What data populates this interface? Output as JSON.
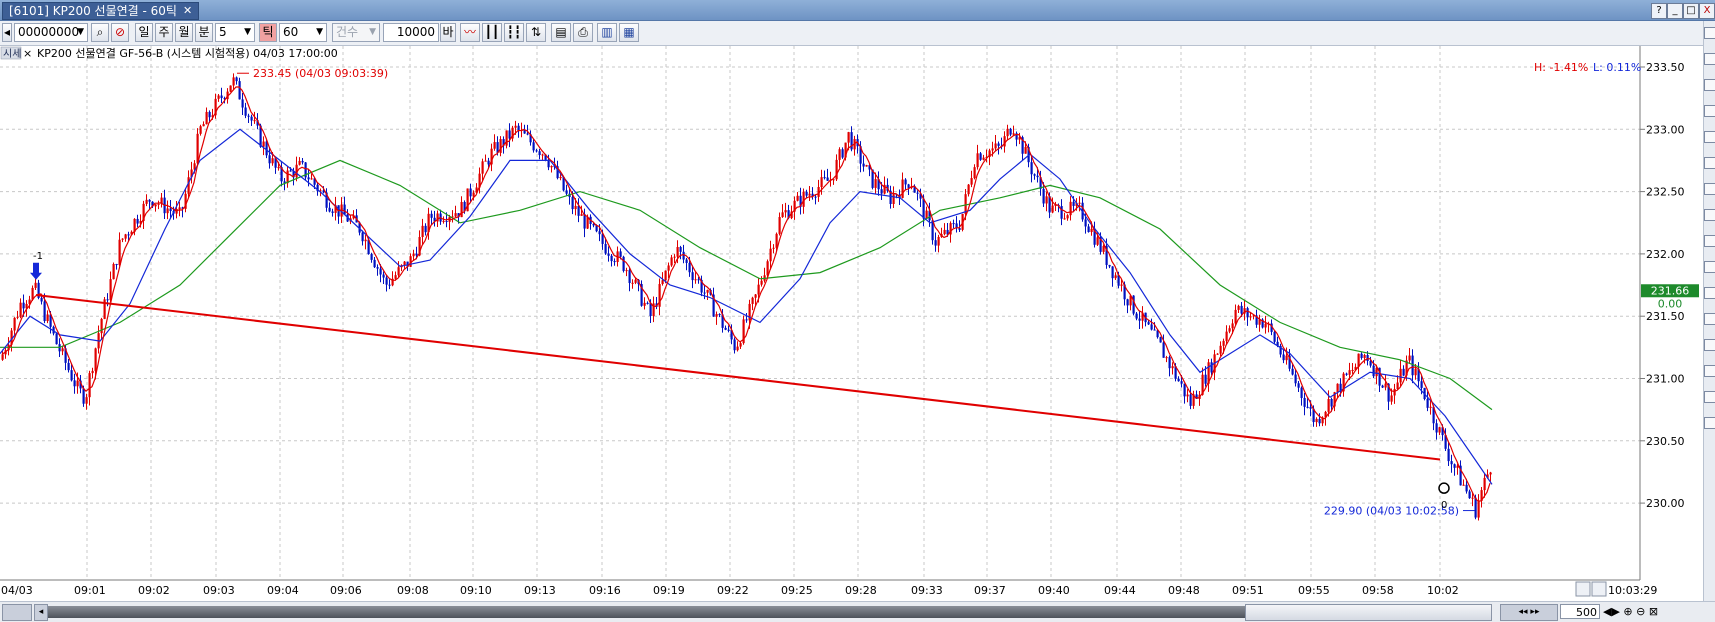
{
  "window": {
    "tab_title": "[6101] KP200 선물연결 - 60틱",
    "close_glyph": "✕",
    "help_button": "?",
    "min_button": "_",
    "restore_button": "□",
    "close_button": "X"
  },
  "toolbar": {
    "code_value": "00000000",
    "period_day": "일",
    "period_week": "주",
    "period_month": "월",
    "period_minute": "분",
    "minute_value": "5",
    "period_tick": "틱",
    "tick_value": "60",
    "count_label": "건수",
    "count_value": "10000",
    "count_unit": "바"
  },
  "legend": {
    "badge": "시세",
    "close_glyph": "×",
    "text": "KP200 선물연결  GF-56-B (시스템 시험적용) 04/03 17:00:00"
  },
  "stats": {
    "high": "H: -1.41%",
    "low": "L: 0.11%"
  },
  "current_price": "231.66",
  "current_change": "0.00",
  "footer": {
    "bar_count": "500",
    "clock": "10:03:29"
  },
  "chart_data": {
    "type": "candlestick",
    "ylim": [
      229.8,
      233.65
    ],
    "y_ticks": [
      "233.50",
      "233.00",
      "232.50",
      "232.00",
      "231.50",
      "231.00",
      "230.50",
      "230.00"
    ],
    "x_ticks": [
      "04/03",
      "09:01",
      "09:02",
      "09:03",
      "09:04",
      "09:06",
      "09:08",
      "09:10",
      "09:13",
      "09:16",
      "09:19",
      "09:22",
      "09:25",
      "09:28",
      "09:33",
      "09:37",
      "09:40",
      "09:44",
      "09:48",
      "09:51",
      "09:55",
      "09:58",
      "10:02"
    ],
    "price_path": [
      [
        0,
        231.15
      ],
      [
        20,
        231.6
      ],
      [
        34,
        231.72
      ],
      [
        55,
        231.3
      ],
      [
        78,
        230.9
      ],
      [
        85,
        230.85
      ],
      [
        100,
        231.45
      ],
      [
        120,
        232.1
      ],
      [
        150,
        232.45
      ],
      [
        180,
        232.3
      ],
      [
        200,
        233.0
      ],
      [
        232,
        233.4
      ],
      [
        258,
        232.95
      ],
      [
        280,
        232.6
      ],
      [
        300,
        232.7
      ],
      [
        330,
        232.4
      ],
      [
        360,
        232.2
      ],
      [
        385,
        231.75
      ],
      [
        410,
        231.95
      ],
      [
        430,
        232.3
      ],
      [
        460,
        232.35
      ],
      [
        490,
        232.8
      ],
      [
        515,
        233.0
      ],
      [
        545,
        232.8
      ],
      [
        570,
        232.4
      ],
      [
        600,
        232.1
      ],
      [
        625,
        231.9
      ],
      [
        650,
        231.5
      ],
      [
        675,
        232.05
      ],
      [
        700,
        231.75
      ],
      [
        735,
        231.25
      ],
      [
        755,
        231.65
      ],
      [
        780,
        232.3
      ],
      [
        810,
        232.5
      ],
      [
        830,
        232.6
      ],
      [
        848,
        232.95
      ],
      [
        870,
        232.6
      ],
      [
        890,
        232.45
      ],
      [
        910,
        232.6
      ],
      [
        935,
        232.1
      ],
      [
        960,
        232.25
      ],
      [
        975,
        232.8
      ],
      [
        1000,
        232.85
      ],
      [
        1012,
        233.05
      ],
      [
        1030,
        232.7
      ],
      [
        1050,
        232.35
      ],
      [
        1080,
        232.35
      ],
      [
        1100,
        232.05
      ],
      [
        1130,
        231.6
      ],
      [
        1160,
        231.25
      ],
      [
        1190,
        230.8
      ],
      [
        1210,
        231.1
      ],
      [
        1235,
        231.55
      ],
      [
        1265,
        231.45
      ],
      [
        1290,
        231.05
      ],
      [
        1315,
        230.65
      ],
      [
        1340,
        230.95
      ],
      [
        1365,
        231.2
      ],
      [
        1390,
        230.85
      ],
      [
        1408,
        231.15
      ],
      [
        1425,
        230.85
      ],
      [
        1450,
        230.35
      ],
      [
        1475,
        229.95
      ],
      [
        1492,
        230.35
      ]
    ],
    "ma_blue": [
      [
        0,
        231.2
      ],
      [
        30,
        231.5
      ],
      [
        60,
        231.35
      ],
      [
        100,
        231.3
      ],
      [
        130,
        231.6
      ],
      [
        165,
        232.2
      ],
      [
        200,
        232.75
      ],
      [
        240,
        233.0
      ],
      [
        280,
        232.75
      ],
      [
        320,
        232.5
      ],
      [
        360,
        232.2
      ],
      [
        400,
        231.9
      ],
      [
        430,
        231.95
      ],
      [
        470,
        232.3
      ],
      [
        510,
        232.75
      ],
      [
        550,
        232.75
      ],
      [
        590,
        232.35
      ],
      [
        630,
        232.0
      ],
      [
        670,
        231.75
      ],
      [
        710,
        231.65
      ],
      [
        760,
        231.45
      ],
      [
        800,
        231.8
      ],
      [
        830,
        232.25
      ],
      [
        860,
        232.5
      ],
      [
        900,
        232.45
      ],
      [
        930,
        232.25
      ],
      [
        970,
        232.35
      ],
      [
        1000,
        232.6
      ],
      [
        1030,
        232.8
      ],
      [
        1060,
        232.6
      ],
      [
        1090,
        232.25
      ],
      [
        1130,
        231.85
      ],
      [
        1170,
        231.35
      ],
      [
        1200,
        231.05
      ],
      [
        1230,
        231.2
      ],
      [
        1260,
        231.35
      ],
      [
        1290,
        231.2
      ],
      [
        1330,
        230.85
      ],
      [
        1370,
        231.05
      ],
      [
        1410,
        231.0
      ],
      [
        1445,
        230.7
      ],
      [
        1475,
        230.35
      ],
      [
        1492,
        230.15
      ]
    ],
    "ma_green": [
      [
        0,
        231.25
      ],
      [
        60,
        231.25
      ],
      [
        120,
        231.45
      ],
      [
        180,
        231.75
      ],
      [
        230,
        232.15
      ],
      [
        280,
        232.55
      ],
      [
        340,
        232.75
      ],
      [
        400,
        232.55
      ],
      [
        460,
        232.25
      ],
      [
        520,
        232.35
      ],
      [
        580,
        232.5
      ],
      [
        640,
        232.35
      ],
      [
        700,
        232.05
      ],
      [
        760,
        231.8
      ],
      [
        820,
        231.85
      ],
      [
        880,
        232.05
      ],
      [
        940,
        232.35
      ],
      [
        1000,
        232.45
      ],
      [
        1050,
        232.55
      ],
      [
        1100,
        232.45
      ],
      [
        1160,
        232.2
      ],
      [
        1220,
        231.75
      ],
      [
        1280,
        231.45
      ],
      [
        1340,
        231.25
      ],
      [
        1400,
        231.15
      ],
      [
        1450,
        231.0
      ],
      [
        1492,
        230.75
      ]
    ],
    "trendline": [
      [
        36,
        231.67
      ],
      [
        1440,
        230.35
      ]
    ],
    "high_marker": {
      "label": "233.45 (04/03 09:03:39)",
      "x": 237,
      "price": 233.45
    },
    "low_marker": {
      "label": "229.90 (04/03 10:02:58)",
      "x": 1475,
      "price": 229.9
    },
    "signal_sell": {
      "label": "-1",
      "x": 36,
      "price": 231.72
    },
    "signal_buy": {
      "label": "0",
      "x": 1444,
      "price": 230.2
    }
  }
}
